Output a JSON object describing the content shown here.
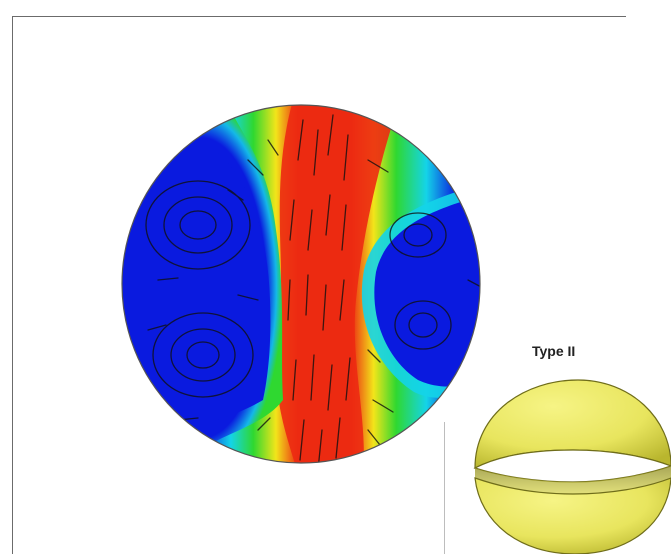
{
  "figure": {
    "type_label": "Type II"
  },
  "colors": {
    "low": "#0a1adf",
    "mid_low": "#14d4e8",
    "mid": "#2fd830",
    "mid_high": "#f2e51a",
    "high": "#ec2a12",
    "hemisphere": "#e8e55e"
  }
}
